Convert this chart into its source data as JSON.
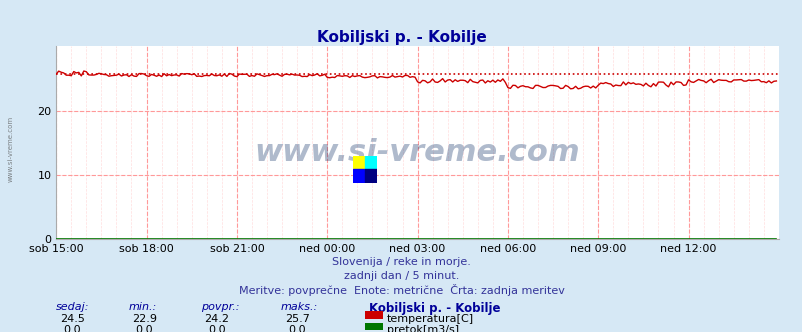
{
  "title": "Kobiljski p. - Kobilje",
  "title_color": "#000099",
  "bg_color": "#d6e8f5",
  "plot_bg_color": "#ffffff",
  "grid_color_major": "#ff9999",
  "grid_color_minor": "#ffdddd",
  "xlim": [
    0,
    288
  ],
  "ylim": [
    0,
    30
  ],
  "yticks": [
    0,
    10,
    20
  ],
  "xtick_labels": [
    "sob 15:00",
    "sob 18:00",
    "sob 21:00",
    "ned 00:00",
    "ned 03:00",
    "ned 06:00",
    "ned 09:00",
    "ned 12:00"
  ],
  "xtick_positions": [
    0,
    36,
    72,
    108,
    144,
    180,
    216,
    252
  ],
  "temp_color": "#cc0000",
  "flow_color": "#007700",
  "avg_line_value": 25.7,
  "watermark": "www.si-vreme.com",
  "watermark_color": "#1a3a6e",
  "footer_line1": "Slovenija / reke in morje.",
  "footer_line2": "zadnji dan / 5 minut.",
  "footer_line3": "Meritve: povprečne  Enote: metrične  Črta: zadnja meritev",
  "footer_color": "#333399",
  "label_color": "#000099",
  "stat_labels": [
    "sedaj:",
    "min.:",
    "povpr.:",
    "maks.:"
  ],
  "stat_values_temp": [
    24.5,
    22.9,
    24.2,
    25.7
  ],
  "stat_values_flow": [
    0.0,
    0.0,
    0.0,
    0.0
  ],
  "legend_station": "Kobiljski p. - Kobilje",
  "legend_temp": "temperatura[C]",
  "legend_flow": "pretok[m3/s]",
  "left_label": "www.si-vreme.com",
  "left_label_color": "#555555"
}
